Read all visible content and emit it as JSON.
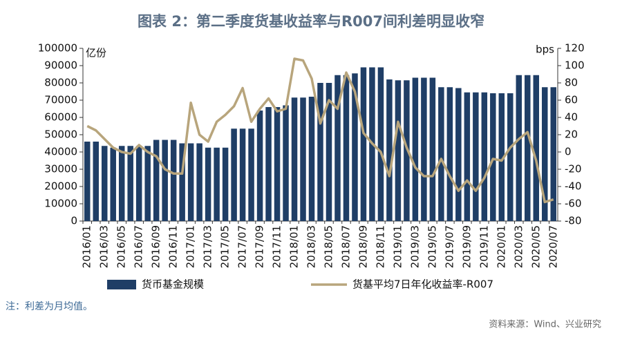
{
  "chart_data": {
    "type": "bar-line",
    "title": "图表 2：第二季度货基收益率与R007间利差明显收窄",
    "y_unit": "亿份",
    "y2_unit": "bps",
    "note": "注：利差为月均值。",
    "source": "资料来源：Wind、兴业研究",
    "categories": [
      "2016/01",
      null,
      "2016/03",
      null,
      "2016/05",
      null,
      "2016/07",
      null,
      "2016/09",
      null,
      "2016/11",
      null,
      "2017/01",
      null,
      "2017/03",
      null,
      "2017/05",
      null,
      "2017/07",
      null,
      "2017/09",
      null,
      "2017/11",
      null,
      "2018/01",
      null,
      "2018/03",
      null,
      "2018/05",
      null,
      "2018/07",
      null,
      "2018/09",
      null,
      "2018/11",
      null,
      "2019/01",
      null,
      "2019/03",
      null,
      "2019/05",
      null,
      "2019/07",
      null,
      "2019/09",
      null,
      "2019/11",
      null,
      "2020/01",
      null,
      "2020/03",
      null,
      "2020/05",
      null,
      "2020/07"
    ],
    "series": [
      {
        "name": "货币基金规模",
        "type": "bar",
        "color": "#1f3e66",
        "axis": "y",
        "values": [
          46000,
          46000,
          43500,
          42500,
          43500,
          43500,
          43500,
          43500,
          47000,
          47000,
          47000,
          45000,
          45000,
          45000,
          42500,
          42500,
          42500,
          53500,
          53500,
          53500,
          64000,
          66000,
          66000,
          67000,
          71500,
          71500,
          72000,
          80000,
          80000,
          84500,
          84500,
          85500,
          89000,
          89000,
          89000,
          82000,
          81500,
          81500,
          83000,
          83000,
          83000,
          77500,
          77500,
          77000,
          74500,
          74500,
          74500,
          74000,
          74000,
          74000,
          84500,
          84500,
          84500,
          77500,
          77500
        ]
      },
      {
        "name": "货基平均7日年化收益率-R007",
        "type": "line",
        "color": "#b8a57c",
        "axis": "y2",
        "values": [
          30,
          25,
          15,
          5,
          0,
          -2,
          8,
          0,
          -5,
          -20,
          -25,
          -25,
          57,
          20,
          12,
          35,
          43,
          53,
          74,
          35,
          50,
          62,
          47,
          50,
          108,
          106,
          85,
          33,
          60,
          50,
          92,
          70,
          22,
          10,
          0,
          -28,
          35,
          5,
          -18,
          -28,
          -28,
          -8,
          -28,
          -45,
          -33,
          -45,
          -30,
          -8,
          -10,
          5,
          15,
          23,
          -10,
          -58,
          -55
        ]
      }
    ],
    "ylim": [
      0,
      100000
    ],
    "yticks": [
      0,
      10000,
      20000,
      30000,
      40000,
      50000,
      60000,
      70000,
      80000,
      90000,
      100000
    ],
    "y2lim": [
      -80,
      120
    ],
    "y2ticks": [
      -80,
      -60,
      -40,
      -20,
      0,
      20,
      40,
      60,
      80,
      100,
      120
    ]
  }
}
